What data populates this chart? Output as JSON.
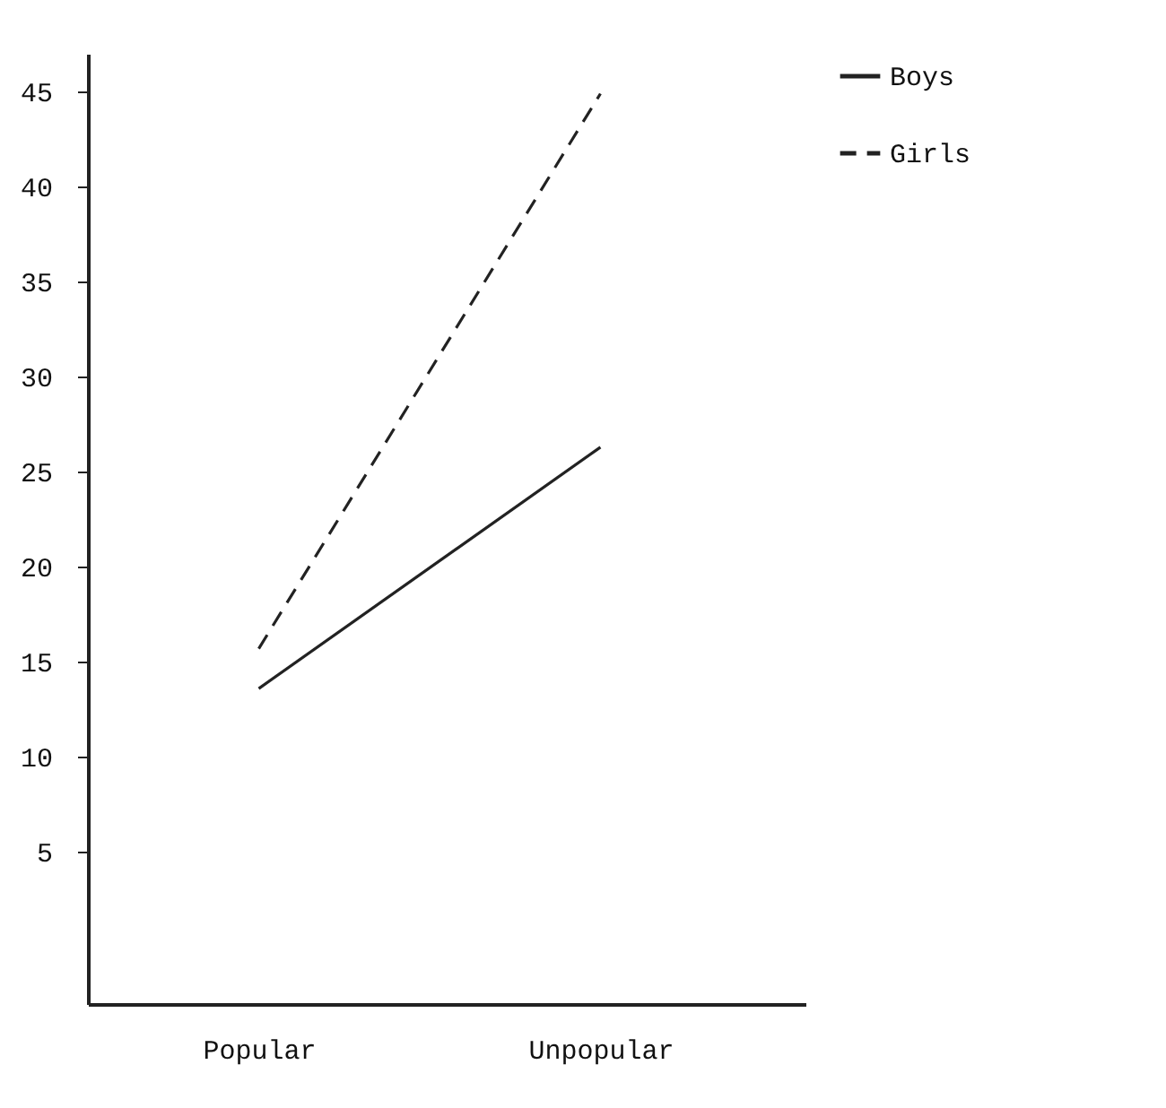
{
  "chart_data": {
    "type": "line",
    "categories": [
      "Popular",
      "Unpopular"
    ],
    "series": [
      {
        "name": "Boys",
        "color": "#222222",
        "values": [
          13.6,
          26.3
        ],
        "line_style": "solid"
      },
      {
        "name": "Girls",
        "color": "#222222",
        "values": [
          15.7,
          44.9
        ],
        "line_style": "dashed"
      }
    ],
    "ylim": [
      -3,
      47
    ],
    "yticks": [
      5,
      10,
      15,
      20,
      25,
      30,
      35,
      40,
      45
    ],
    "grid": false,
    "legend": "top right",
    "marker": "none"
  }
}
